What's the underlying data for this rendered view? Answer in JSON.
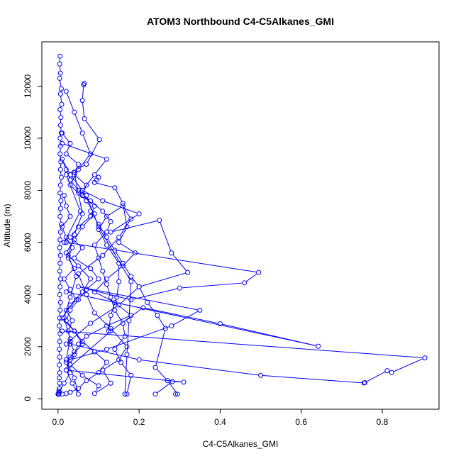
{
  "chart_data": {
    "type": "line",
    "title": "ATOM3 Northbound C4-C5Alkanes_GMI",
    "xlabel": "C4-C5Alkanes_GMI",
    "ylabel": "Altitude (m)",
    "xlim": [
      -0.04,
      0.94
    ],
    "ylim": [
      -400,
      13700
    ],
    "xticks": [
      0.0,
      0.2,
      0.4,
      0.6,
      0.8
    ],
    "xtick_labels": [
      "0.0",
      "0.2",
      "0.4",
      "0.6",
      "0.8"
    ],
    "yticks": [
      0,
      2000,
      4000,
      6000,
      8000,
      10000,
      12000
    ],
    "ytick_labels": [
      "0",
      "2000",
      "4000",
      "6000",
      "8000",
      "10000",
      "12000"
    ],
    "grid": false,
    "legend": "none",
    "series": [
      {
        "color": "#0000ff",
        "marker": "open-circle",
        "x": [
          0.005,
          0.004,
          0.006,
          0.004,
          0.008,
          0.006,
          0.009,
          0.005,
          0.007,
          0.006,
          0.008,
          0.005,
          0.006,
          0.005,
          0.007,
          0.006,
          0.008,
          0.006,
          0.005,
          0.007,
          0.006,
          0.005,
          0.008,
          0.006,
          0.005,
          0.004,
          0.006,
          0.005,
          0.004,
          0.006,
          0.005,
          0.004,
          0.006,
          0.005,
          0.004,
          0.003,
          0.005,
          0.004,
          0.003,
          0.004,
          0.003,
          0.004,
          0.003,
          0.004,
          0.003,
          0.002,
          0.003,
          0.002,
          0.001,
          0.002,
          0.001,
          0.001
        ],
        "y": [
          13150,
          12850,
          12500,
          12300,
          11900,
          11700,
          11300,
          11100,
          10800,
          10500,
          10200,
          10000,
          9700,
          9400,
          9100,
          8800,
          8500,
          8200,
          7900,
          7600,
          7300,
          7000,
          6700,
          6400,
          6100,
          5800,
          5500,
          5200,
          4900,
          4600,
          4300,
          4000,
          3700,
          3400,
          3100,
          2800,
          2500,
          2200,
          1900,
          1600,
          1300,
          1000,
          800,
          600,
          400,
          300,
          250,
          200,
          190,
          185,
          180,
          180
        ]
      },
      {
        "color": "#0000ff",
        "marker": "open-circle",
        "x": [
          0.065,
          0.063,
          0.06,
          0.065,
          0.102,
          0.07,
          0.02,
          0.055,
          0.015
        ],
        "y": [
          12100,
          12050,
          11450,
          10750,
          9950,
          9000,
          8600,
          7200,
          6000
        ]
      },
      {
        "color": "#0000ff",
        "marker": "open-circle",
        "x": [
          0.01,
          0.12,
          0.09,
          0.06,
          0.11,
          0.2,
          0.13,
          0.25,
          0.28,
          0.32,
          0.2,
          0.15,
          0.08,
          0.02
        ],
        "y": [
          9800,
          9200,
          8600,
          8000,
          7600,
          7100,
          6400,
          6850,
          5600,
          4850,
          4300,
          3600,
          2900,
          2100
        ]
      },
      {
        "color": "#0000ff",
        "marker": "open-circle",
        "x": [
          0.02,
          0.495,
          0.46,
          0.3,
          0.18,
          0.05,
          0.35,
          0.28,
          0.12,
          0.03
        ],
        "y": [
          6000,
          4850,
          4450,
          4250,
          3800,
          4300,
          3400,
          2800,
          1900,
          1500
        ]
      },
      {
        "color": "#0000ff",
        "marker": "open-circle",
        "x": [
          0.01,
          0.905,
          0.823,
          0.812,
          0.757,
          0.755,
          0.5,
          0.2,
          0.03
        ],
        "y": [
          2600,
          1570,
          1010,
          1080,
          620,
          610,
          900,
          1500,
          2100
        ]
      },
      {
        "color": "#0000ff",
        "marker": "open-circle",
        "x": [
          0.02,
          0.642,
          0.4,
          0.21,
          0.13,
          0.02,
          0.31,
          0.282,
          0.24
        ],
        "y": [
          4100,
          2020,
          2880,
          3500,
          2600,
          1100,
          640,
          660,
          180
        ]
      },
      {
        "color": "#0000ff",
        "marker": "open-circle",
        "x": [
          0.1,
          0.095,
          0.09,
          0.14,
          0.16,
          0.17,
          0.15,
          0.19,
          0.16,
          0.12,
          0.09,
          0.14,
          0.18,
          0.12,
          0.07,
          0.05,
          0.04,
          0.03,
          0.06,
          0.1,
          0.09,
          0.13,
          0.11,
          0.15,
          0.17,
          0.13,
          0.09,
          0.07,
          0.05,
          0.11,
          0.15,
          0.18,
          0.16,
          0.12,
          0.1,
          0.12,
          0.15,
          0.15,
          0.145,
          0.13,
          0.125
        ],
        "y": [
          8500,
          8400,
          8300,
          8100,
          7500,
          6600,
          6000,
          5600,
          5100,
          4600,
          4100,
          3700,
          3200,
          2800,
          2400,
          2100,
          1700,
          1300,
          900,
          500,
          200,
          600,
          1100,
          1500,
          2000,
          2700,
          3300,
          4000,
          4800,
          5500,
          6200,
          6900,
          7400,
          7000,
          6500,
          5900,
          5200,
          4500,
          3900,
          3200,
          2600
        ]
      },
      {
        "color": "#0000ff",
        "marker": "open-circle",
        "x": [
          0.01,
          0.03,
          0.02,
          0.05,
          0.04,
          0.07,
          0.06,
          0.09,
          0.08,
          0.05,
          0.03,
          0.06,
          0.04,
          0.08,
          0.1,
          0.07,
          0.05,
          0.03,
          0.02,
          0.04,
          0.06,
          0.09,
          0.12,
          0.1,
          0.07,
          0.05,
          0.03,
          0.02,
          0.01
        ],
        "y": [
          10200,
          9800,
          9400,
          9000,
          8600,
          8200,
          7800,
          7400,
          7000,
          6600,
          6200,
          5800,
          5400,
          5000,
          4600,
          4200,
          3800,
          3400,
          3000,
          2600,
          2200,
          1800,
          1400,
          1000,
          700,
          400,
          250,
          200,
          180
        ]
      },
      {
        "color": "#0000ff",
        "marker": "open-circle",
        "x": [
          0.0,
          0.015,
          0.03,
          0.02,
          0.04,
          0.03,
          0.025,
          0.035,
          0.02,
          0.045,
          0.03,
          0.015,
          0.04,
          0.025,
          0.035,
          0.02,
          0.01,
          0.03,
          0.02,
          0.015
        ],
        "y": [
          180,
          600,
          1000,
          1400,
          1800,
          2200,
          2600,
          3000,
          3400,
          3800,
          4200,
          4600,
          5000,
          5400,
          5800,
          6200,
          6600,
          7000,
          7400,
          7800
        ]
      },
      {
        "color": "#0000ff",
        "marker": "open-circle",
        "x": [
          0.17,
          0.18,
          0.155,
          0.14,
          0.165,
          0.16,
          0.14,
          0.13,
          0.12,
          0.11,
          0.1,
          0.09,
          0.12,
          0.13,
          0.11,
          0.08,
          0.05,
          0.03,
          0.02,
          0.01,
          0.03,
          0.07,
          0.1,
          0.18,
          0.175,
          0.17,
          0.165
        ],
        "y": [
          180,
          900,
          1400,
          1900,
          2400,
          2900,
          3400,
          3900,
          4400,
          4900,
          5400,
          5900,
          6400,
          6800,
          7200,
          7600,
          8000,
          8400,
          8800,
          9200,
          8600,
          7800,
          6600,
          4500,
          3000,
          1700,
          180
        ]
      },
      {
        "color": "#0000ff",
        "marker": "open-circle",
        "x": [
          0.29,
          0.295,
          0.27,
          0.24,
          0.265,
          0.245,
          0.22,
          0.2,
          0.18,
          0.16,
          0.14,
          0.12,
          0.1,
          0.08
        ],
        "y": [
          180,
          180,
          700,
          1200,
          2700,
          3200,
          3700,
          4300,
          4700,
          5200,
          5700,
          6200,
          6700,
          7200
        ]
      },
      {
        "color": "#0000ff",
        "marker": "open-circle",
        "x": [
          0.02,
          0.04,
          0.06,
          0.08,
          0.05,
          0.03,
          0.07,
          0.09,
          0.06,
          0.04,
          0.02,
          0.05,
          0.08,
          0.06,
          0.03,
          0.01,
          0.04,
          0.06,
          0.03,
          0.02,
          0.035,
          0.05,
          0.04,
          0.02,
          0.03,
          0.015,
          0.03,
          0.045,
          0.025,
          0.04,
          0.06,
          0.05,
          0.04
        ],
        "y": [
          11800,
          11000,
          10200,
          9400,
          8800,
          8200,
          7600,
          7100,
          6600,
          6100,
          5600,
          5100,
          4600,
          4100,
          3600,
          3100,
          2600,
          2100,
          1600,
          1100,
          600,
          180,
          800,
          1500,
          2300,
          3100,
          3900,
          4700,
          5500,
          6300,
          7100,
          7900,
          8700
        ]
      }
    ]
  }
}
